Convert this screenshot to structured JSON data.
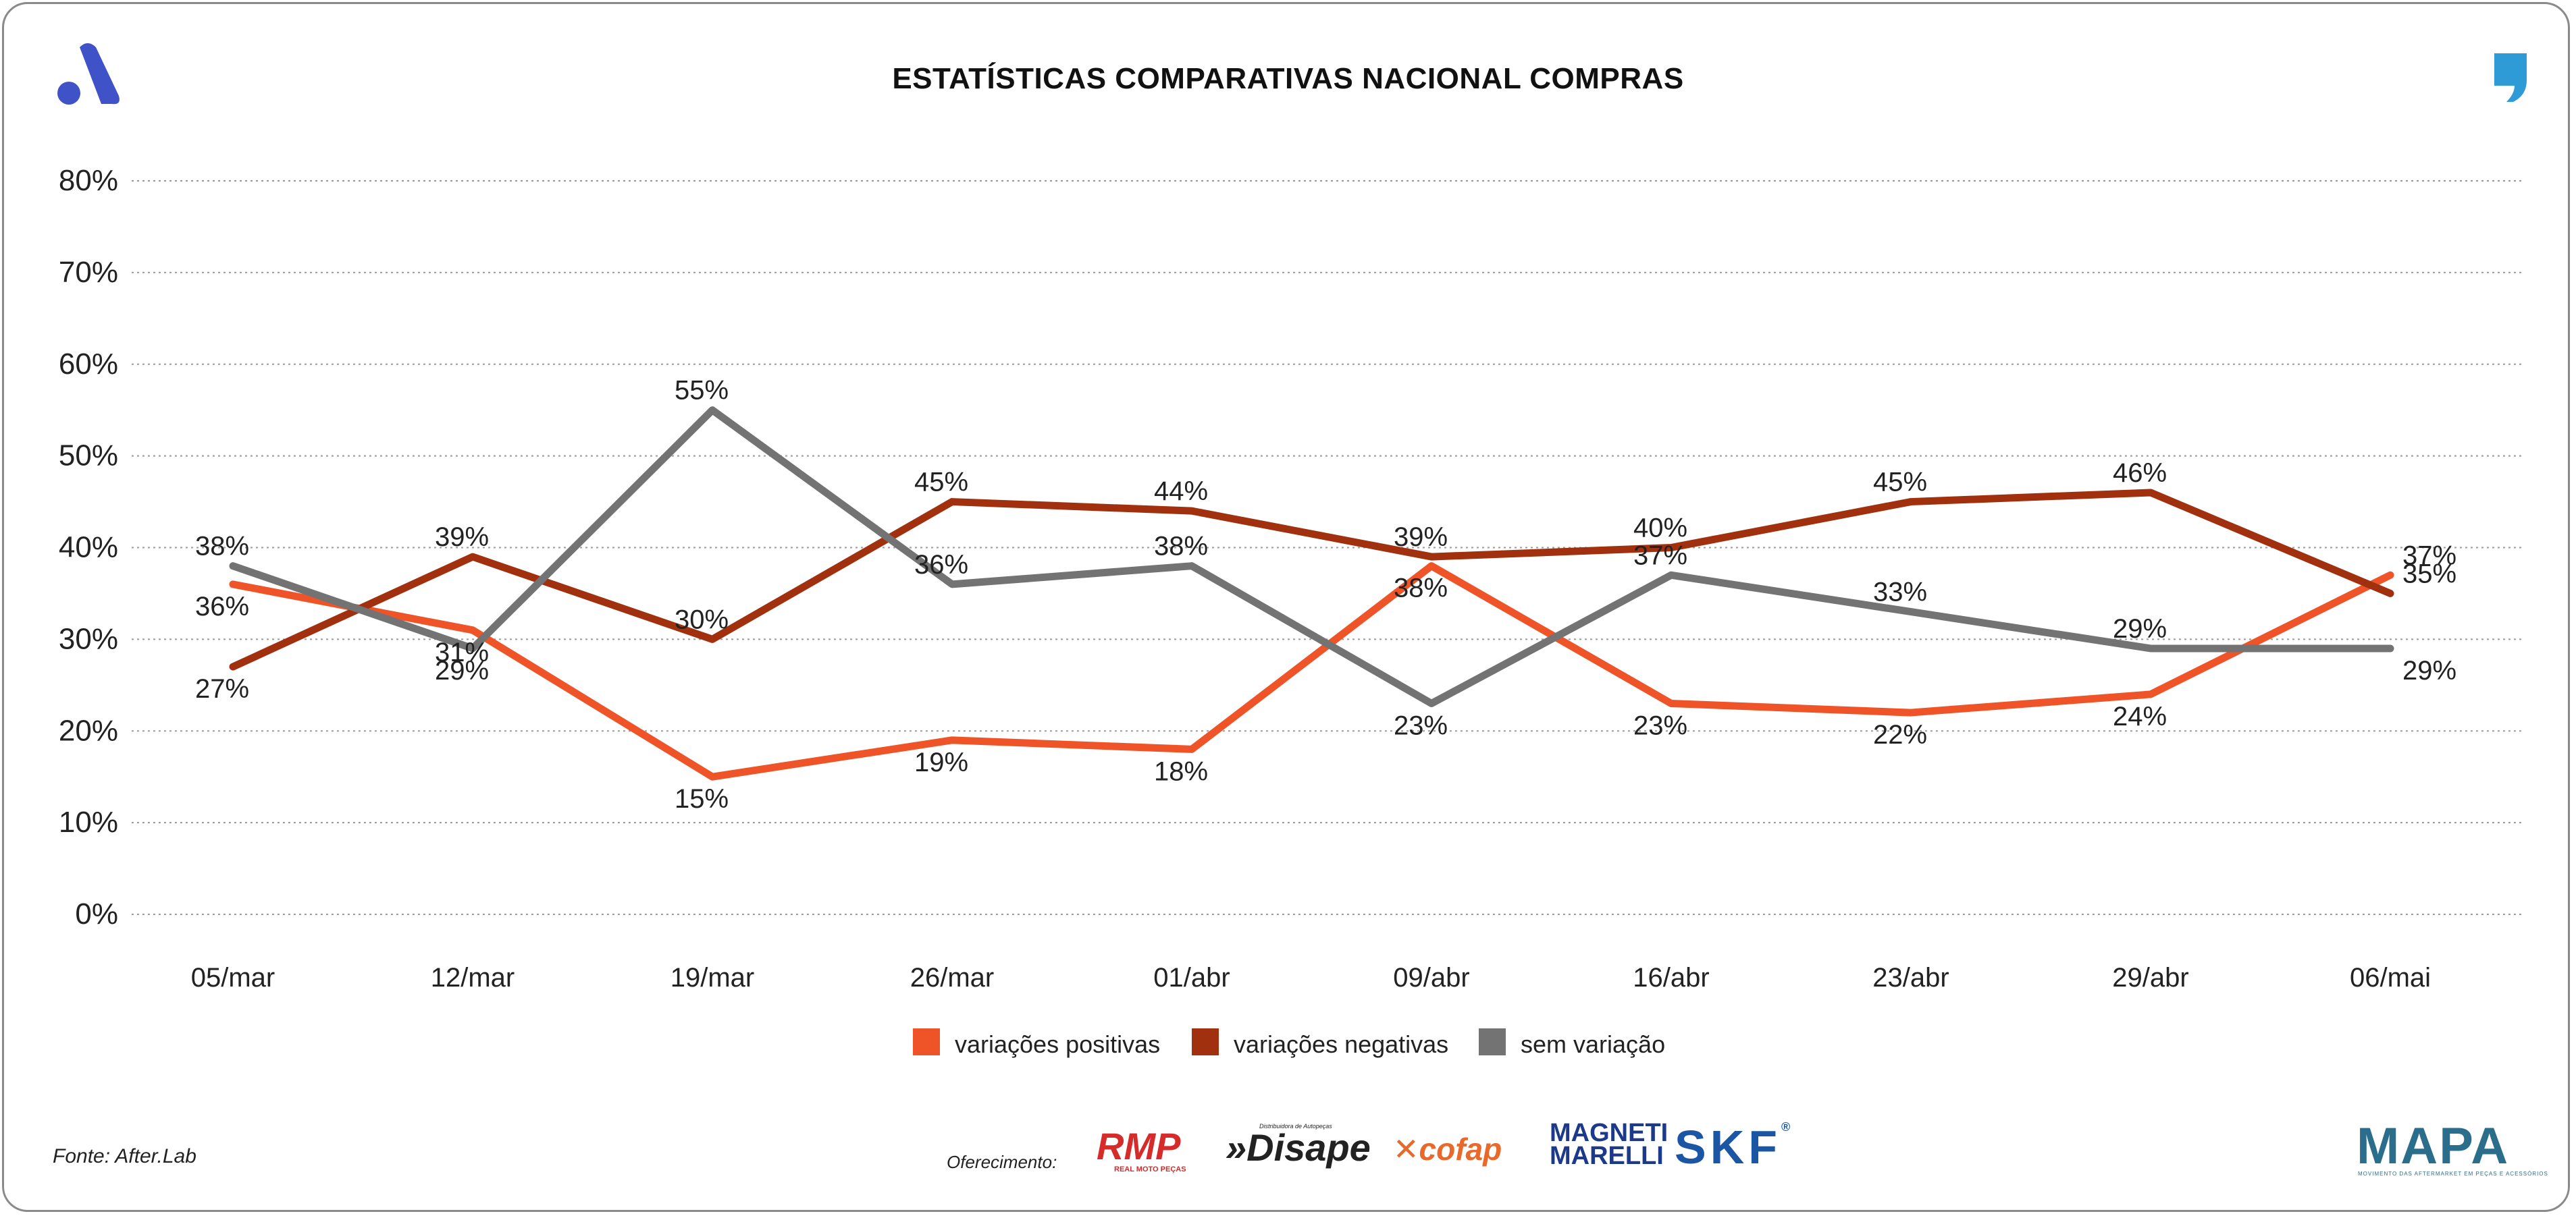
{
  "header": {
    "title": "ESTATÍSTICAS COMPARATIVAS NACIONAL COMPRAS"
  },
  "footer": {
    "source": "Fonte: After.Lab",
    "offer_label": "Oferecimento:",
    "sponsors": [
      "RMP",
      "Disape",
      "cofap",
      "MAGNETI MARELLI",
      "SKF"
    ],
    "sponsor_taglines": {
      "rmp": "REAL MOTO PEÇAS",
      "disape": "Distribuidora de Autopeças"
    },
    "brand": "MAPA",
    "brand_tagline": "MOVIMENTO DAS AFTERMARKET EM PEÇAS E ACESSÓRIOS"
  },
  "colors": {
    "positive": "#EE5428",
    "negative": "#A1300F",
    "neutral": "#737373",
    "logo_left": "#3F52C7",
    "logo_right": "#2E9AD6"
  },
  "icons": {
    "left": "afterlab-logo-icon",
    "right": "quote-logo-icon"
  },
  "chart_data": {
    "type": "line",
    "title": "ESTATÍSTICAS COMPARATIVAS NACIONAL COMPRAS",
    "categories": [
      "05/mar",
      "12/mar",
      "19/mar",
      "26/mar",
      "01/abr",
      "09/abr",
      "16/abr",
      "23/abr",
      "29/abr",
      "06/mai"
    ],
    "ylim": [
      0,
      80
    ],
    "yticks": [
      "0%",
      "10%",
      "20%",
      "30%",
      "40%",
      "50%",
      "60%",
      "70%",
      "80%"
    ],
    "grid": true,
    "legend_position": "bottom-center",
    "series": [
      {
        "name": "variações positivas",
        "color": "#EE5428",
        "values": [
          36,
          31,
          15,
          19,
          18,
          38,
          23,
          22,
          24,
          37
        ]
      },
      {
        "name": "variações negativas",
        "color": "#A1300F",
        "values": [
          27,
          39,
          30,
          45,
          44,
          39,
          40,
          45,
          46,
          35
        ]
      },
      {
        "name": "sem variação",
        "color": "#737373",
        "values": [
          38,
          29,
          55,
          36,
          38,
          23,
          37,
          33,
          29,
          29
        ]
      }
    ]
  }
}
